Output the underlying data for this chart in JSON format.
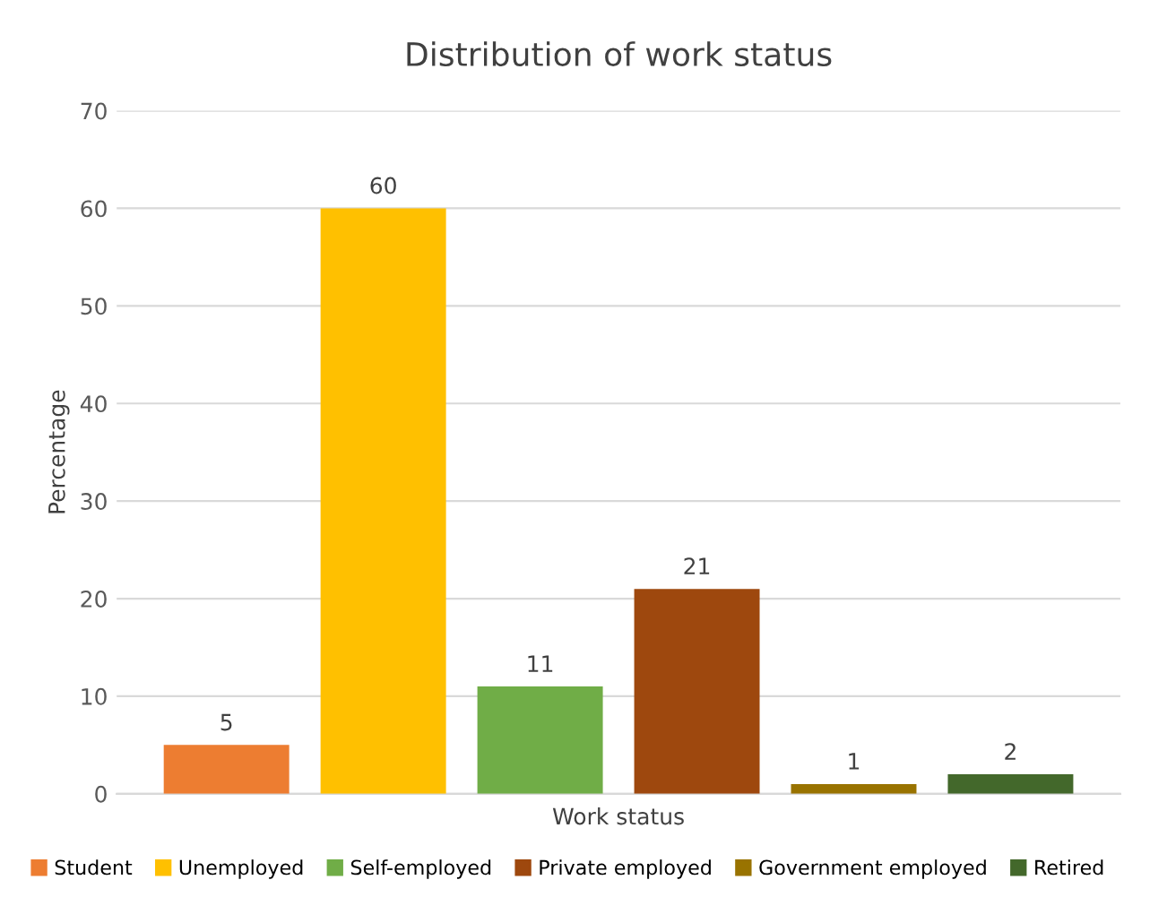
{
  "chart_data": {
    "type": "bar",
    "title": "Distribution of work status",
    "xlabel": "Work status",
    "ylabel": "Percentage",
    "categories": [
      null,
      null,
      null,
      null,
      null,
      null
    ],
    "series": [
      {
        "name": "Student",
        "color": "#ed7d31",
        "values": [
          5,
          null,
          null,
          null,
          null,
          null
        ]
      },
      {
        "name": "Unemployed",
        "color": "#ffc000",
        "values": [
          null,
          60,
          null,
          null,
          null,
          null
        ]
      },
      {
        "name": "Self-employed",
        "color": "#70ad47",
        "values": [
          null,
          null,
          11,
          null,
          null,
          null
        ]
      },
      {
        "name": "Private employed",
        "color": "#9e480e",
        "values": [
          null,
          null,
          null,
          21,
          null,
          null
        ]
      },
      {
        "name": "Government employed",
        "color": "#997300",
        "values": [
          null,
          null,
          null,
          null,
          1,
          null
        ]
      },
      {
        "name": "Retired",
        "color": "#43682b",
        "values": [
          null,
          null,
          null,
          null,
          null,
          2
        ]
      }
    ],
    "ylim": [
      0,
      70
    ],
    "yticks": [
      0,
      10,
      20,
      30,
      40,
      50,
      60,
      70
    ],
    "grid": "y",
    "legend": "bottom",
    "data_labels": true
  }
}
